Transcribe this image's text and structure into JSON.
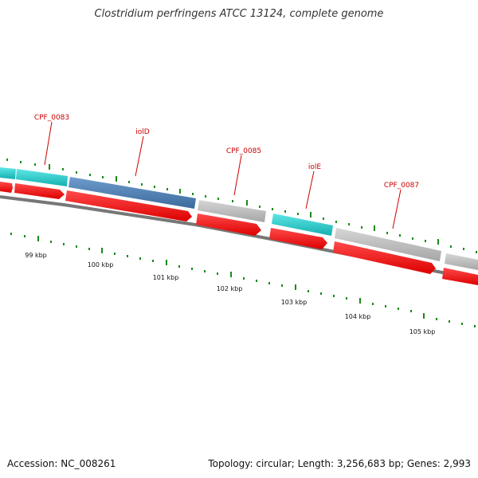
{
  "title": "Clostridium perfringens ATCC 13124, complete genome",
  "footer": {
    "accession": "Accession: NC_008261",
    "summary": "Topology: circular; Length: 3,256,683 bp; Genes: 2,993"
  },
  "colors": {
    "cds_red": "#ff0000",
    "gene_cyan": "#22cccc",
    "gene_blue": "#4a7fb0",
    "gene_gray": "#b8b8b8",
    "backbone": "#777777",
    "tick_green": "#1a8a1a",
    "label_red": "#cc0000"
  },
  "genes": [
    {
      "name": "CPF_0083",
      "type": "cyan"
    },
    {
      "name": "iolD",
      "type": "blue"
    },
    {
      "name": "CPF_0085",
      "type": "gray"
    },
    {
      "name": "iolE",
      "type": "cyan"
    },
    {
      "name": "CPF_0087",
      "type": "gray"
    }
  ],
  "kbp_labels": [
    "99 kbp",
    "100 kbp",
    "101 kbp",
    "102 kbp",
    "103 kbp",
    "104 kbp",
    "105 kbp"
  ]
}
